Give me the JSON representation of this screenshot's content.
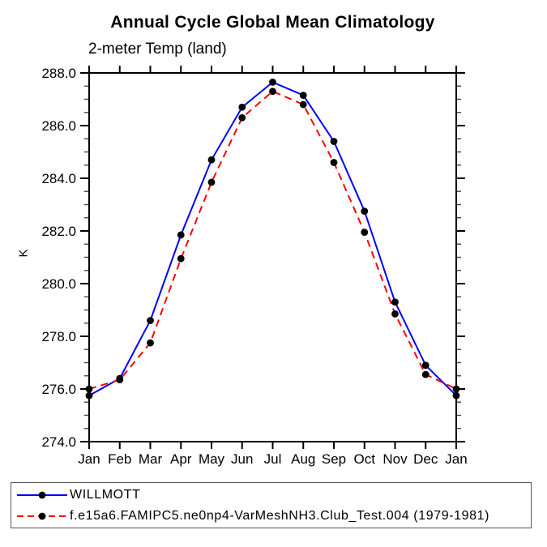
{
  "title": "Annual Cycle Global Mean Climatology",
  "subtitle": "2-meter Temp (land)",
  "y_axis_label": "K",
  "chart_data": {
    "type": "line",
    "categories": [
      "Jan",
      "Feb",
      "Mar",
      "Apr",
      "May",
      "Jun",
      "Jul",
      "Aug",
      "Sep",
      "Oct",
      "Nov",
      "Dec",
      "Jan"
    ],
    "series": [
      {
        "name": "WILLMOTT",
        "color": "#0000ff",
        "line_style": "solid",
        "marker": "filled-circle",
        "marker_color": "#000000",
        "values": [
          275.75,
          276.4,
          278.6,
          281.85,
          284.7,
          286.7,
          287.65,
          287.15,
          285.4,
          282.75,
          279.3,
          276.9,
          275.75
        ]
      },
      {
        "name": "f.e15a6.FAMIPC5.ne0np4-VarMeshNH3.Club_Test.004 (1979-1981)",
        "color": "#ff0000",
        "line_style": "dashed",
        "marker": "filled-circle",
        "marker_color": "#000000",
        "values": [
          276.0,
          276.35,
          277.75,
          280.95,
          283.85,
          286.3,
          287.3,
          286.8,
          284.6,
          281.95,
          278.85,
          276.55,
          276.0
        ]
      }
    ],
    "ylim": [
      274.0,
      288.0
    ],
    "y_major_ticks": [
      274,
      276,
      278,
      280,
      282,
      284,
      286,
      288
    ],
    "y_tick_labels": [
      "274.0",
      "276.0",
      "278.0",
      "280.0",
      "282.0",
      "284.0",
      "286.0",
      "288.0"
    ],
    "y_minor_step": 0.5,
    "xlabel": "",
    "ylabel": "K",
    "grid": false,
    "legend_position": "bottom-left",
    "axis_color": "#000000",
    "minor_tick_color": "#444444"
  }
}
